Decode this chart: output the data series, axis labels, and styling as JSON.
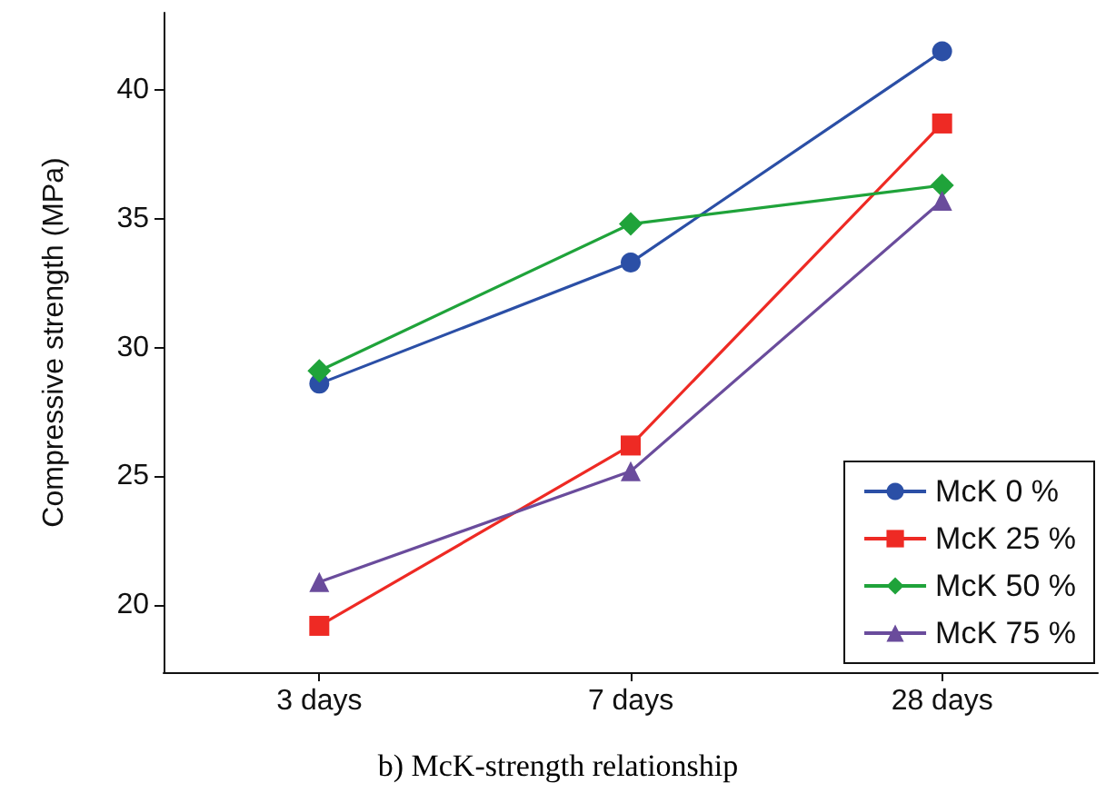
{
  "chart_data": {
    "type": "line",
    "ylabel": "Compressive strength (MPa)",
    "categories": [
      "3 days",
      "7 days",
      "28 days"
    ],
    "series": [
      {
        "name": "McK 0 %",
        "color": "#2b4fa6",
        "marker": "circle",
        "values": [
          28.6,
          33.3,
          41.5
        ]
      },
      {
        "name": "McK 25 %",
        "color": "#ee2a24",
        "marker": "square",
        "values": [
          19.2,
          26.2,
          38.7
        ]
      },
      {
        "name": "McK 50 %",
        "color": "#1fa33a",
        "marker": "diamond",
        "values": [
          29.1,
          34.8,
          36.3
        ]
      },
      {
        "name": "McK 75 %",
        "color": "#6a4c9c",
        "marker": "triangle",
        "values": [
          20.9,
          25.2,
          35.7
        ]
      }
    ],
    "ylim": [
      17.4,
      43
    ],
    "yticks": [
      20,
      25,
      30,
      35,
      40
    ],
    "grid": false,
    "legend": "bottom right",
    "line_style": "solid",
    "annotations": [
      "b) McK-strength relationship"
    ]
  }
}
